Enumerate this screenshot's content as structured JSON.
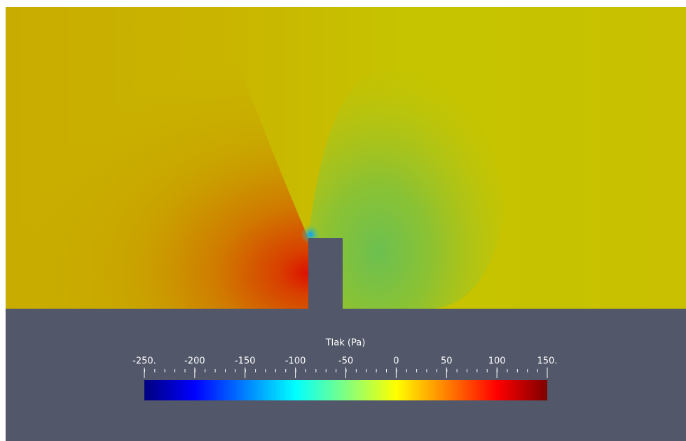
{
  "colorbar": {
    "title": "Tlak (Pa)",
    "range": [
      -250,
      150
    ],
    "ticks": [
      {
        "value": -250,
        "label": "-250."
      },
      -200,
      -150,
      -100,
      -50,
      0,
      50,
      100,
      {
        "value": 150,
        "label": "150."
      }
    ],
    "colors": [
      "#00007f",
      "#0000ff",
      "#0080ff",
      "#00ffff",
      "#80ff80",
      "#ffff00",
      "#ff8000",
      "#ff0000",
      "#7f0000"
    ]
  }
}
